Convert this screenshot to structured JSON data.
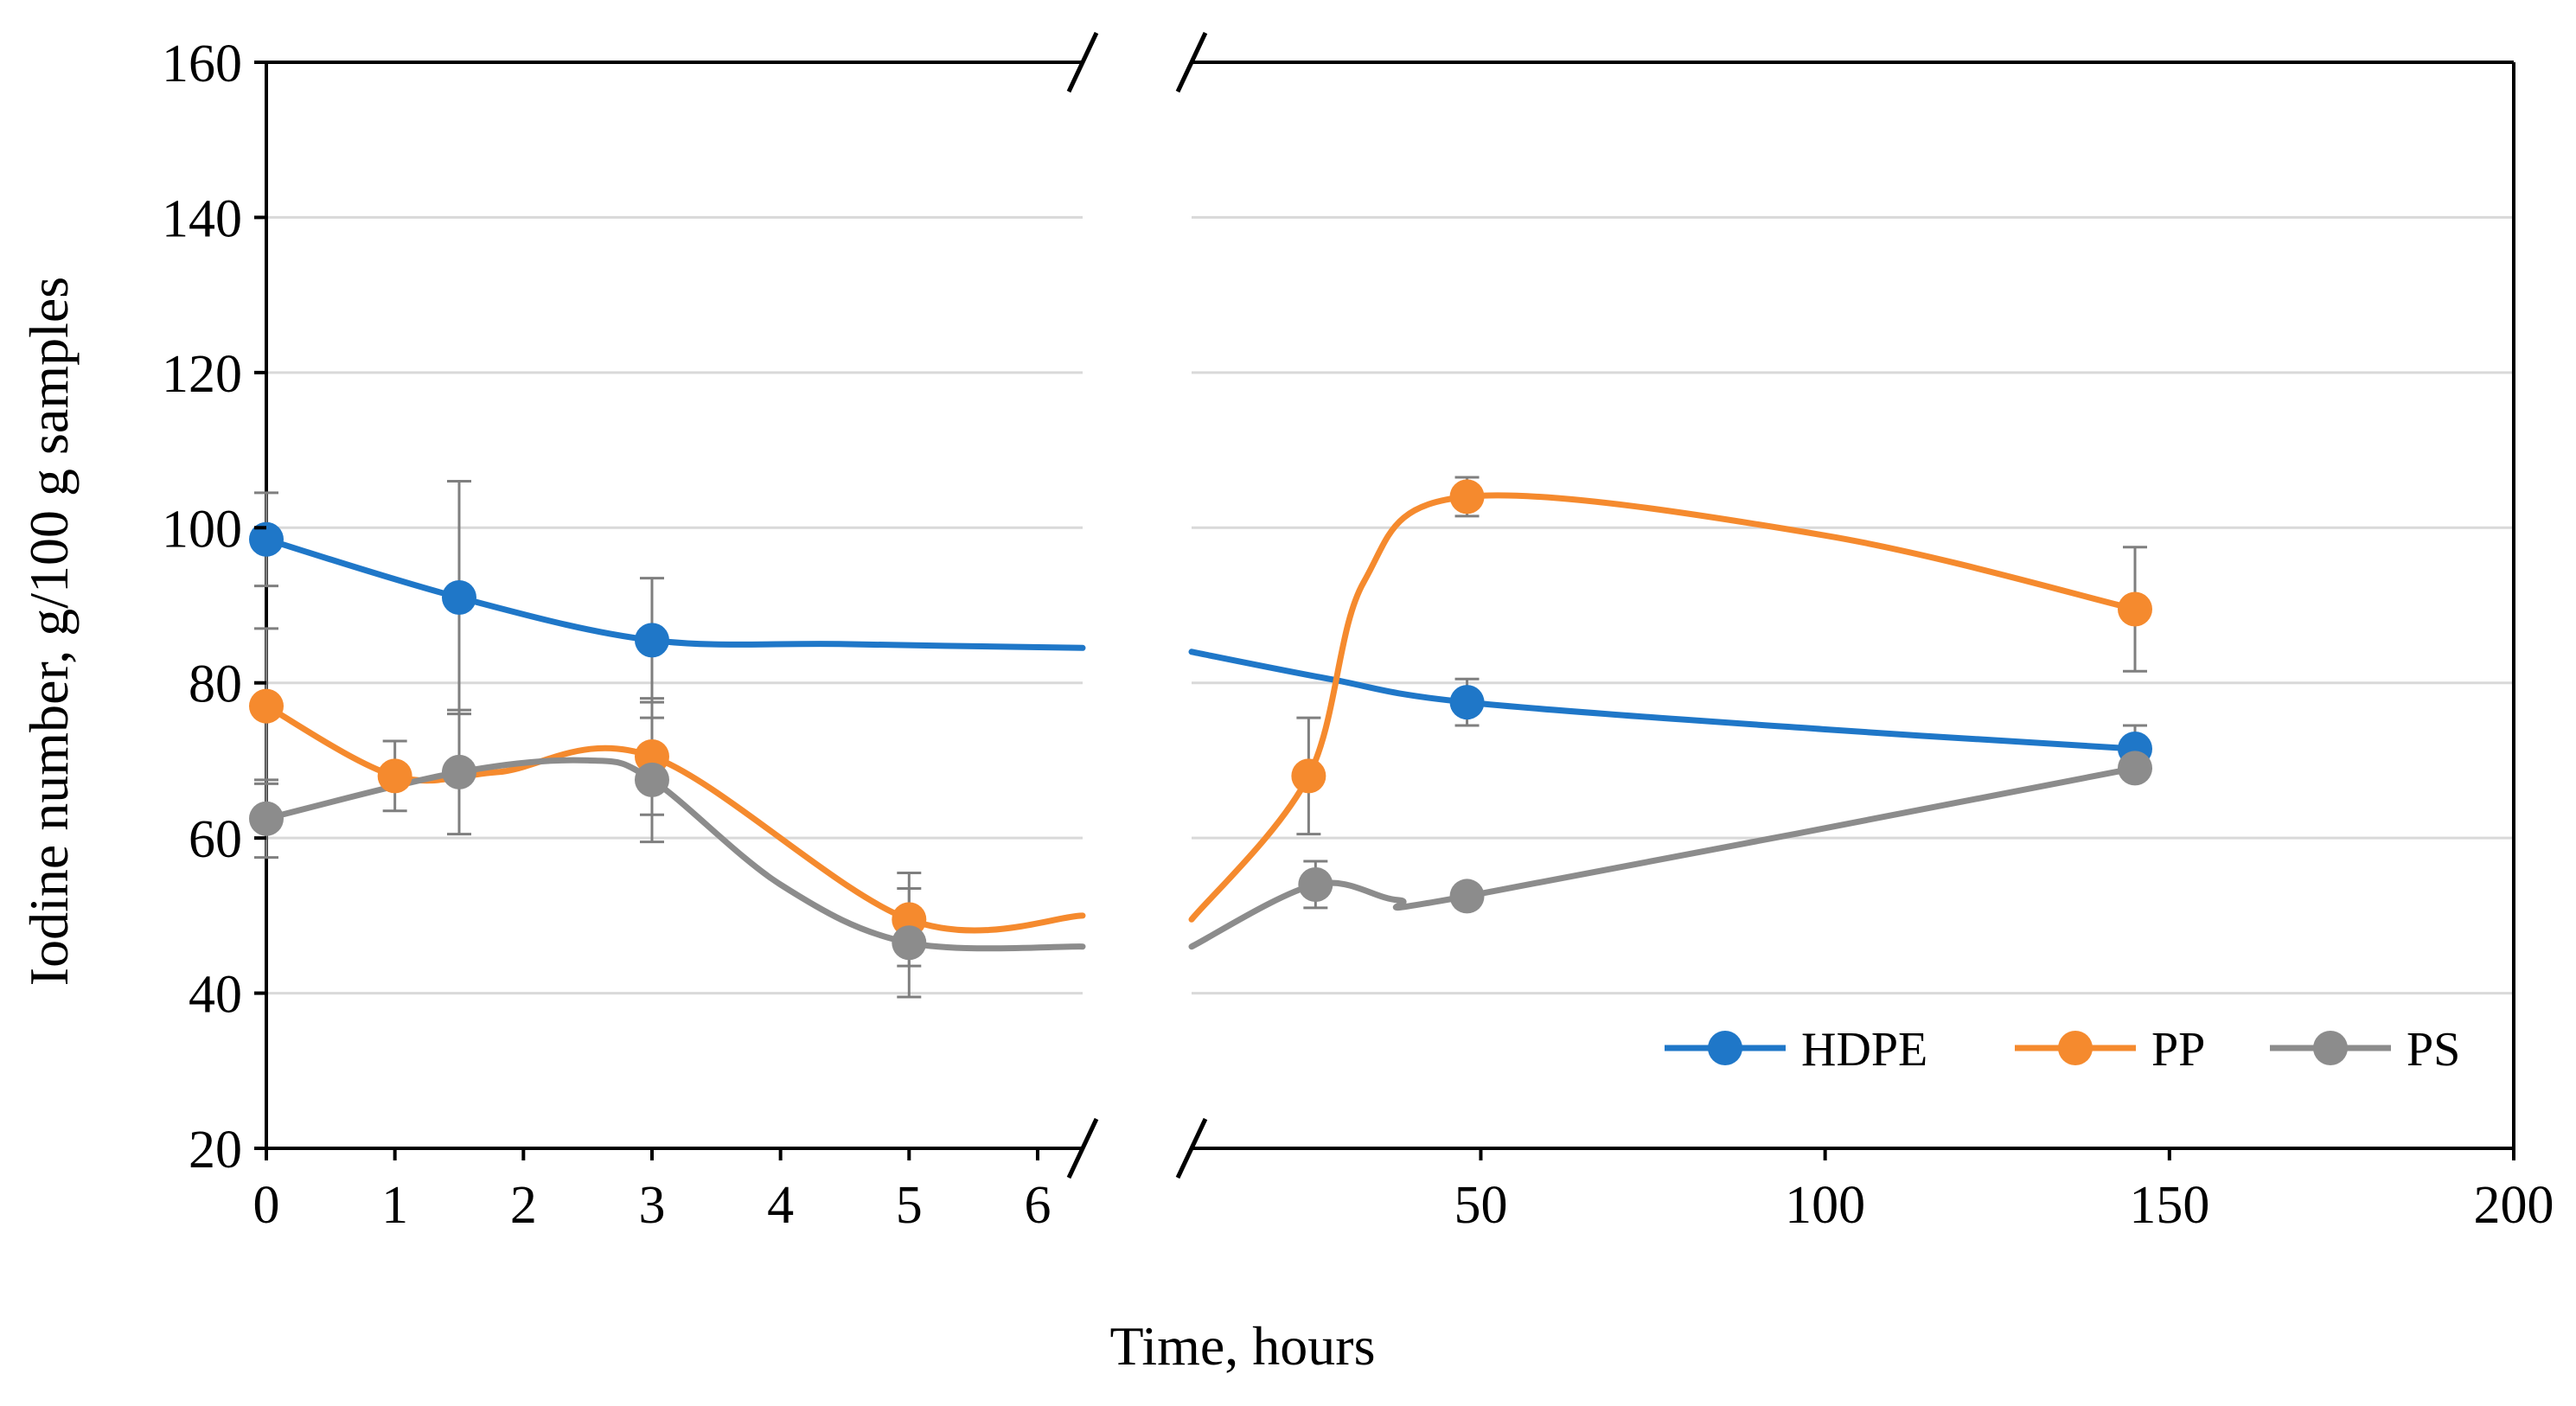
{
  "chart_data": {
    "type": "line",
    "xlabel": "Time, hours",
    "ylabel": "Iodine number, g/100 g samples",
    "ylim": [
      20,
      160
    ],
    "yticks": [
      "20",
      "40",
      "60",
      "80",
      "100",
      "120",
      "140",
      "160"
    ],
    "grid": true,
    "legend_position": "bottom-right",
    "x_axis_break": true,
    "panels": [
      {
        "name": "left",
        "xlim": [
          0,
          6.35
        ],
        "xticks": [
          "0",
          "1",
          "2",
          "3",
          "4",
          "5",
          "6"
        ]
      },
      {
        "name": "right",
        "xlim": [
          8,
          200
        ],
        "xticks": [
          "50",
          "100",
          "150",
          "200"
        ]
      }
    ],
    "series": [
      {
        "name": "HDPE",
        "color": "#1f77c8",
        "left_points": [
          [
            0,
            98.5,
            6
          ],
          [
            1.5,
            91,
            15
          ],
          [
            3,
            85.5,
            8
          ]
        ],
        "left_curve": [
          [
            0,
            98.5
          ],
          [
            1.5,
            91
          ],
          [
            3,
            85.5
          ],
          [
            4.5,
            85
          ],
          [
            6.35,
            84.5
          ]
        ],
        "right_points": [
          [
            48,
            77.5,
            3
          ],
          [
            145,
            71.5,
            3
          ]
        ],
        "right_curve": [
          [
            8,
            84
          ],
          [
            28,
            80.5
          ],
          [
            48,
            77.5
          ],
          [
            100,
            74
          ],
          [
            145,
            71.5
          ]
        ]
      },
      {
        "name": "PP",
        "color": "#f58a2e",
        "left_points": [
          [
            0,
            77,
            10
          ],
          [
            1,
            68,
            4.5
          ],
          [
            3,
            70.5,
            7.5
          ],
          [
            5,
            49.5,
            6
          ]
        ],
        "left_curve": [
          [
            0,
            77
          ],
          [
            1,
            68
          ],
          [
            1.8,
            68.5
          ],
          [
            3,
            70.5
          ],
          [
            5,
            49.5
          ],
          [
            6.35,
            50
          ]
        ],
        "right_points": [
          [
            25,
            68,
            7.5
          ],
          [
            48,
            104,
            2.5
          ],
          [
            145,
            89.5,
            8
          ]
        ],
        "right_curve": [
          [
            8,
            49.5
          ],
          [
            25,
            68
          ],
          [
            33,
            93
          ],
          [
            48,
            104
          ],
          [
            100,
            99
          ],
          [
            145,
            89.5
          ]
        ]
      },
      {
        "name": "PS",
        "color": "#8c8c8c",
        "left_points": [
          [
            0,
            62.5,
            5
          ],
          [
            1.5,
            68.5,
            8
          ],
          [
            3,
            67.5,
            8
          ],
          [
            5,
            46.5,
            7
          ]
        ],
        "left_curve": [
          [
            0,
            62.5
          ],
          [
            1.5,
            68.5
          ],
          [
            2.5,
            70
          ],
          [
            3,
            67.5
          ],
          [
            4,
            54
          ],
          [
            5,
            46.5
          ],
          [
            6.35,
            46
          ]
        ],
        "right_points": [
          [
            26,
            54,
            3
          ],
          [
            48,
            52.5,
            0
          ],
          [
            145,
            69,
            0
          ]
        ],
        "right_curve": [
          [
            8,
            46
          ],
          [
            26,
            54
          ],
          [
            38,
            52
          ],
          [
            48,
            52.5
          ],
          [
            145,
            69
          ]
        ]
      }
    ]
  }
}
